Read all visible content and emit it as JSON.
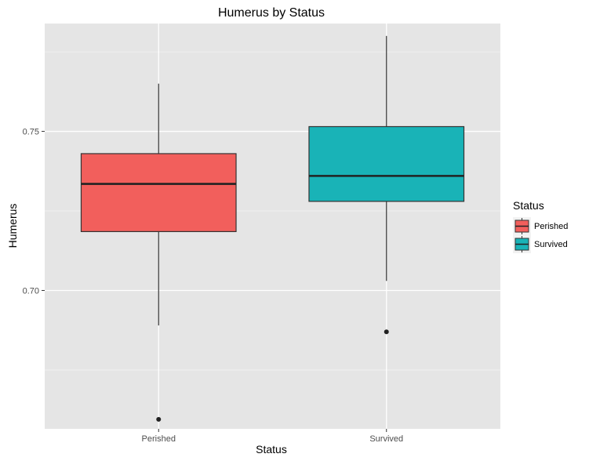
{
  "chart_data": {
    "type": "box",
    "title": "Humerus by Status",
    "xlabel": "Status",
    "ylabel": "Humerus",
    "categories": [
      "Perished",
      "Survived"
    ],
    "y_ticks": [
      0.7,
      0.75
    ],
    "y_tick_labels": [
      "0.70",
      "0.75"
    ],
    "ylim": [
      0.6565,
      0.7839
    ],
    "grid": true,
    "legend": {
      "title": "Status",
      "placement": "right",
      "items": [
        {
          "label": "Perished",
          "color": "#f25f5c"
        },
        {
          "label": "Survived",
          "color": "#19b3b7"
        }
      ]
    },
    "boxes": [
      {
        "category": "Perished",
        "color": "#f25f5c",
        "whisker_low": 0.689,
        "q1": 0.7185,
        "median": 0.7335,
        "q3": 0.743,
        "whisker_high": 0.765,
        "outliers": [
          0.6595
        ]
      },
      {
        "category": "Survived",
        "color": "#19b3b7",
        "whisker_low": 0.703,
        "q1": 0.728,
        "median": 0.736,
        "q3": 0.7515,
        "whisker_high": 0.78,
        "outliers": [
          0.687
        ]
      }
    ]
  }
}
